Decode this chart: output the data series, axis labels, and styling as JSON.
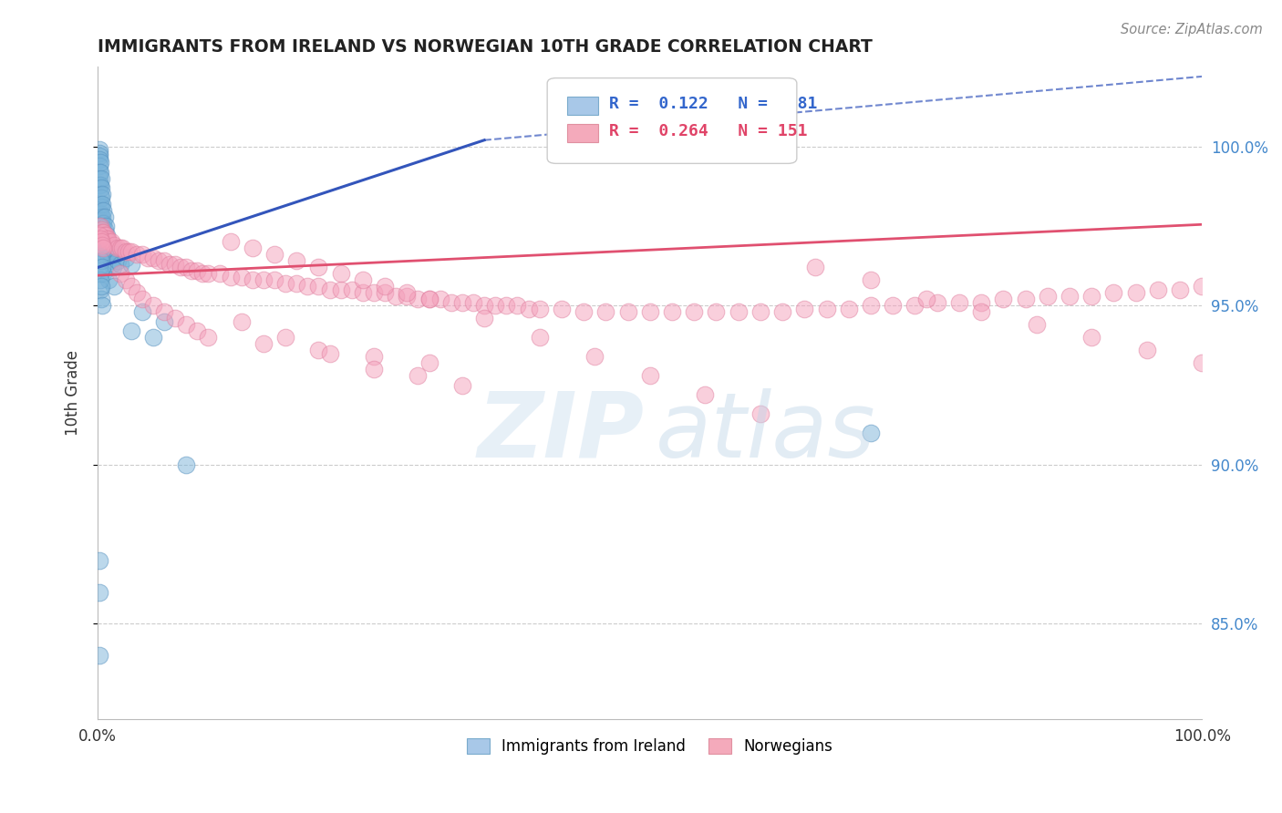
{
  "title": "IMMIGRANTS FROM IRELAND VS NORWEGIAN 10TH GRADE CORRELATION CHART",
  "source": "Source: ZipAtlas.com",
  "ylabel": "10th Grade",
  "ytick_values": [
    0.85,
    0.9,
    0.95,
    1.0
  ],
  "ytick_labels": [
    "85.0%",
    "90.0%",
    "95.0%",
    "100.0%"
  ],
  "blue_R": 0.122,
  "blue_N": 81,
  "pink_R": 0.264,
  "pink_N": 151,
  "blue_color": "#7ab3d9",
  "blue_edge": "#5590be",
  "pink_color": "#f4a0bb",
  "pink_edge": "#e080a0",
  "blue_line_color": "#3355bb",
  "pink_line_color": "#e05070",
  "grid_color": "#cccccc",
  "background_color": "#ffffff",
  "xlim": [
    0.0,
    1.0
  ],
  "ylim": [
    0.82,
    1.025
  ],
  "blue_scatter_x": [
    0.001,
    0.001,
    0.001,
    0.001,
    0.001,
    0.001,
    0.001,
    0.001,
    0.002,
    0.002,
    0.002,
    0.002,
    0.002,
    0.002,
    0.002,
    0.003,
    0.003,
    0.003,
    0.003,
    0.003,
    0.003,
    0.003,
    0.003,
    0.004,
    0.004,
    0.004,
    0.004,
    0.004,
    0.005,
    0.005,
    0.005,
    0.006,
    0.006,
    0.006,
    0.007,
    0.007,
    0.008,
    0.008,
    0.009,
    0.009,
    0.01,
    0.011,
    0.012,
    0.013,
    0.014,
    0.015,
    0.016,
    0.018,
    0.02,
    0.025,
    0.03,
    0.005,
    0.01,
    0.015,
    0.002,
    0.003,
    0.004,
    0.04,
    0.06,
    0.03,
    0.05,
    0.001,
    0.001,
    0.002,
    0.002,
    0.003,
    0.7,
    0.08,
    0.001,
    0.001,
    0.002,
    0.002,
    0.003,
    0.003,
    0.004,
    0.001,
    0.001,
    0.001
  ],
  "blue_scatter_y": [
    0.999,
    0.998,
    0.997,
    0.996,
    0.994,
    0.992,
    0.99,
    0.988,
    0.995,
    0.992,
    0.988,
    0.985,
    0.982,
    0.979,
    0.977,
    0.99,
    0.987,
    0.984,
    0.981,
    0.978,
    0.975,
    0.972,
    0.97,
    0.985,
    0.982,
    0.978,
    0.975,
    0.972,
    0.98,
    0.976,
    0.972,
    0.978,
    0.974,
    0.97,
    0.975,
    0.97,
    0.972,
    0.968,
    0.97,
    0.966,
    0.968,
    0.966,
    0.964,
    0.963,
    0.962,
    0.968,
    0.966,
    0.964,
    0.963,
    0.965,
    0.963,
    0.96,
    0.958,
    0.956,
    0.955,
    0.952,
    0.95,
    0.948,
    0.945,
    0.942,
    0.94,
    0.965,
    0.962,
    0.96,
    0.958,
    0.956,
    0.91,
    0.9,
    0.975,
    0.972,
    0.97,
    0.968,
    0.966,
    0.964,
    0.962,
    0.87,
    0.86,
    0.84
  ],
  "pink_scatter_x": [
    0.002,
    0.003,
    0.004,
    0.005,
    0.006,
    0.007,
    0.008,
    0.009,
    0.01,
    0.012,
    0.015,
    0.018,
    0.02,
    0.022,
    0.025,
    0.028,
    0.03,
    0.035,
    0.04,
    0.045,
    0.05,
    0.055,
    0.06,
    0.065,
    0.07,
    0.075,
    0.08,
    0.085,
    0.09,
    0.095,
    0.1,
    0.11,
    0.12,
    0.13,
    0.14,
    0.15,
    0.16,
    0.17,
    0.18,
    0.19,
    0.2,
    0.21,
    0.22,
    0.23,
    0.24,
    0.25,
    0.26,
    0.27,
    0.28,
    0.29,
    0.3,
    0.31,
    0.32,
    0.33,
    0.34,
    0.35,
    0.36,
    0.37,
    0.38,
    0.39,
    0.4,
    0.42,
    0.44,
    0.46,
    0.48,
    0.5,
    0.52,
    0.54,
    0.56,
    0.58,
    0.6,
    0.62,
    0.64,
    0.66,
    0.68,
    0.7,
    0.72,
    0.74,
    0.76,
    0.78,
    0.8,
    0.82,
    0.84,
    0.86,
    0.88,
    0.9,
    0.92,
    0.94,
    0.96,
    0.98,
    1.0,
    0.02,
    0.025,
    0.03,
    0.035,
    0.04,
    0.05,
    0.06,
    0.07,
    0.08,
    0.09,
    0.1,
    0.15,
    0.2,
    0.25,
    0.3,
    0.12,
    0.14,
    0.16,
    0.18,
    0.2,
    0.22,
    0.24,
    0.26,
    0.28,
    0.3,
    0.35,
    0.4,
    0.45,
    0.5,
    0.55,
    0.6,
    0.001,
    0.002,
    0.003,
    0.004,
    0.005,
    0.65,
    0.7,
    0.75,
    0.8,
    0.85,
    0.9,
    0.95,
    1.0,
    0.13,
    0.17,
    0.21,
    0.25,
    0.29,
    0.33
  ],
  "pink_scatter_y": [
    0.975,
    0.974,
    0.973,
    0.973,
    0.972,
    0.972,
    0.971,
    0.971,
    0.97,
    0.97,
    0.969,
    0.968,
    0.968,
    0.968,
    0.967,
    0.967,
    0.967,
    0.966,
    0.966,
    0.965,
    0.965,
    0.964,
    0.964,
    0.963,
    0.963,
    0.962,
    0.962,
    0.961,
    0.961,
    0.96,
    0.96,
    0.96,
    0.959,
    0.959,
    0.958,
    0.958,
    0.958,
    0.957,
    0.957,
    0.956,
    0.956,
    0.955,
    0.955,
    0.955,
    0.954,
    0.954,
    0.954,
    0.953,
    0.953,
    0.952,
    0.952,
    0.952,
    0.951,
    0.951,
    0.951,
    0.95,
    0.95,
    0.95,
    0.95,
    0.949,
    0.949,
    0.949,
    0.948,
    0.948,
    0.948,
    0.948,
    0.948,
    0.948,
    0.948,
    0.948,
    0.948,
    0.948,
    0.949,
    0.949,
    0.949,
    0.95,
    0.95,
    0.95,
    0.951,
    0.951,
    0.951,
    0.952,
    0.952,
    0.953,
    0.953,
    0.953,
    0.954,
    0.954,
    0.955,
    0.955,
    0.956,
    0.96,
    0.958,
    0.956,
    0.954,
    0.952,
    0.95,
    0.948,
    0.946,
    0.944,
    0.942,
    0.94,
    0.938,
    0.936,
    0.934,
    0.932,
    0.97,
    0.968,
    0.966,
    0.964,
    0.962,
    0.96,
    0.958,
    0.956,
    0.954,
    0.952,
    0.946,
    0.94,
    0.934,
    0.928,
    0.922,
    0.916,
    0.972,
    0.971,
    0.97,
    0.969,
    0.968,
    0.962,
    0.958,
    0.952,
    0.948,
    0.944,
    0.94,
    0.936,
    0.932,
    0.945,
    0.94,
    0.935,
    0.93,
    0.928,
    0.925
  ]
}
